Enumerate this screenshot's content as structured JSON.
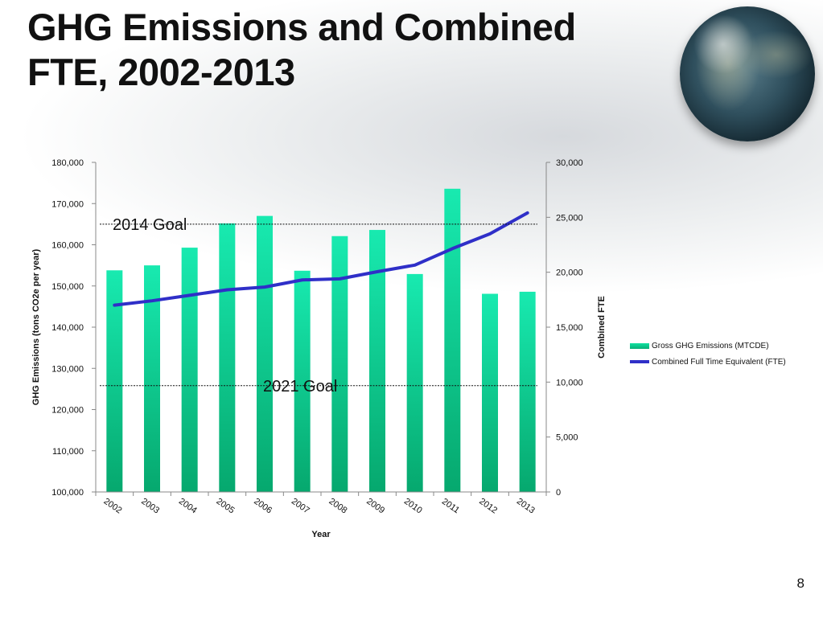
{
  "slide": {
    "title_line1": "GHG Emissions and Combined",
    "title_line2": "FTE, 2002-2013",
    "page_number": "8"
  },
  "colors": {
    "bar_top": "#18eab0",
    "bar_bottom": "#06a86e",
    "line": "#2f2fc8",
    "goal_line": "#111111"
  },
  "chart_data": {
    "type": "bar",
    "categories": [
      "2002",
      "2003",
      "2004",
      "2005",
      "2006",
      "2007",
      "2008",
      "2009",
      "2010",
      "2011",
      "2012",
      "2013"
    ],
    "series": [
      {
        "name": "Gross GHG Emissions (MTCDE)",
        "type": "bar",
        "axis": "left",
        "values": [
          153800,
          155000,
          159300,
          165200,
          167000,
          153700,
          162100,
          163600,
          152900,
          173600,
          148100,
          148600
        ]
      },
      {
        "name": "Combined Full Time Equivalent (FTE)",
        "type": "line",
        "axis": "right",
        "values": [
          17000,
          17400,
          17900,
          18400,
          18650,
          19300,
          19400,
          20050,
          20650,
          22150,
          23500,
          25400
        ]
      }
    ],
    "xlabel": "Year",
    "ylabel": "GHG Emissions (tons CO2e per year)",
    "y2label": "Combined FTE",
    "ylim": [
      100000,
      180000
    ],
    "y2lim": [
      0,
      30000
    ],
    "yticks": [
      "100,000",
      "110,000",
      "120,000",
      "130,000",
      "140,000",
      "150,000",
      "160,000",
      "170,000",
      "180,000"
    ],
    "y2ticks": [
      "0",
      "5,000",
      "10,000",
      "15,000",
      "20,000",
      "25,000",
      "30,000"
    ],
    "annotations": [
      {
        "label": "2014 Goal",
        "value": 165000
      },
      {
        "label": "2021 Goal",
        "value": 125800
      }
    ],
    "legend_position": "right",
    "grid": false
  }
}
